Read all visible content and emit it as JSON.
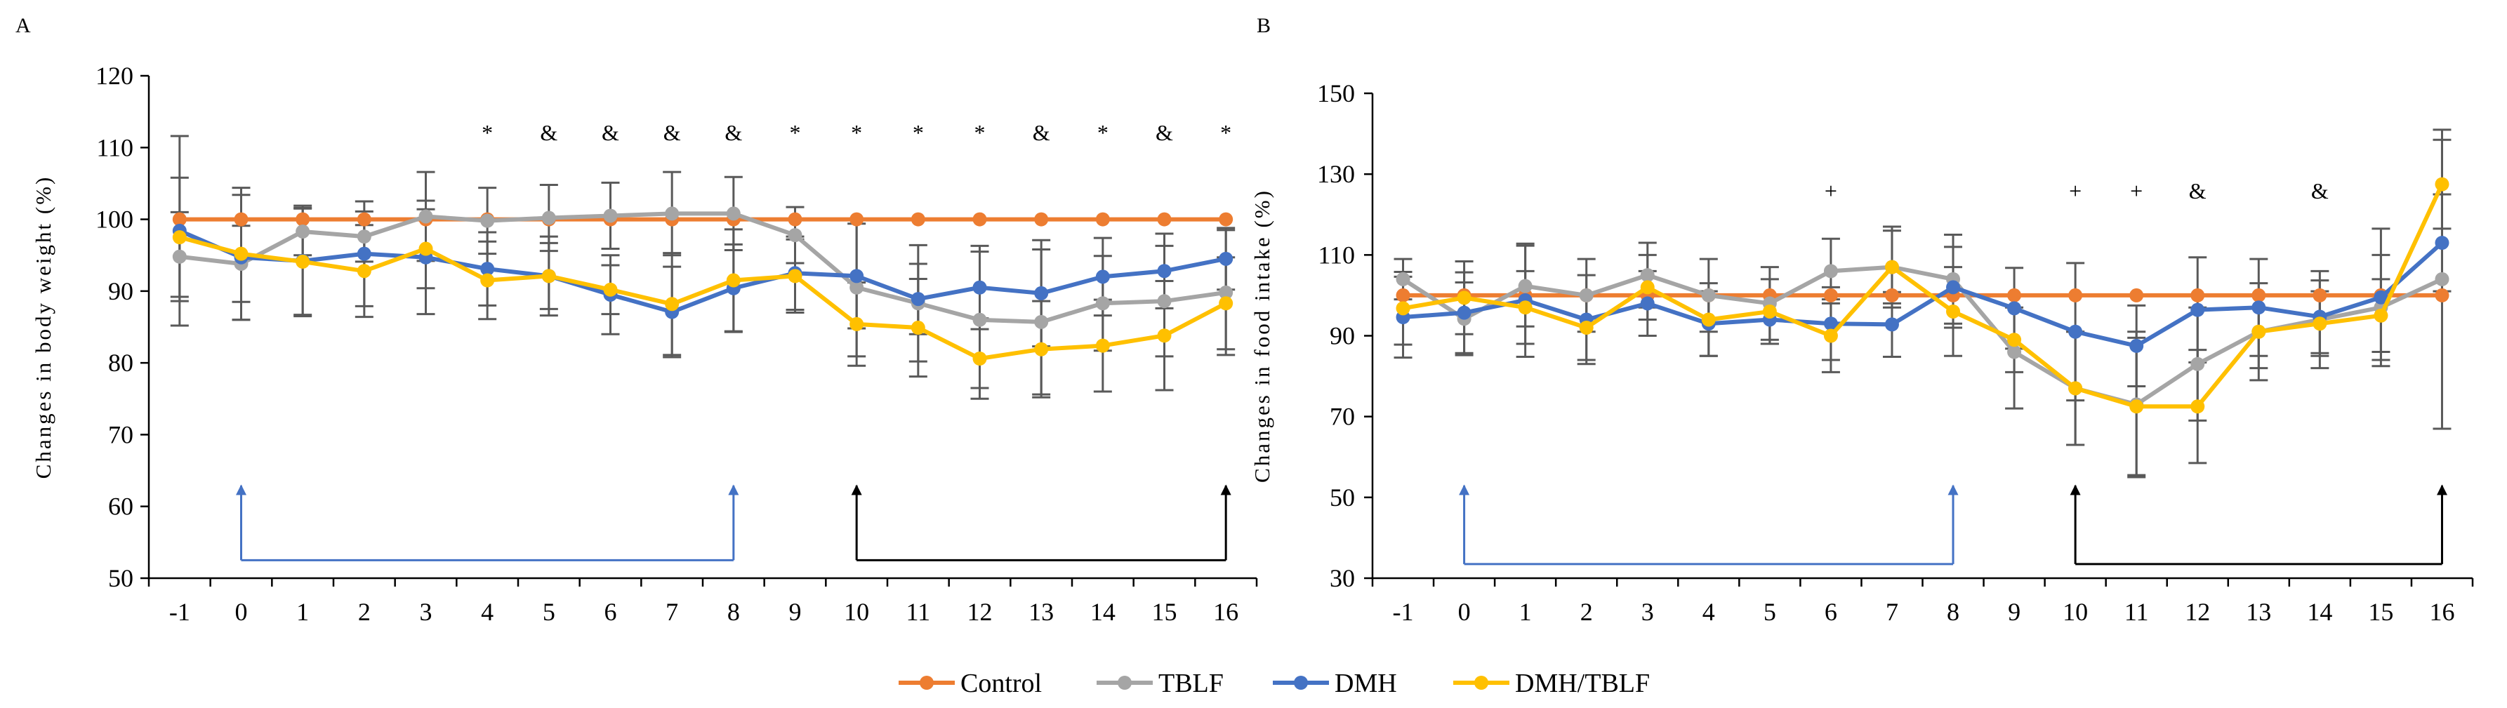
{
  "figure": {
    "legend": [
      {
        "name": "Control",
        "color": "#ED7D31"
      },
      {
        "name": "TBLF",
        "color": "#A5A5A5"
      },
      {
        "name": "DMH",
        "color": "#4472C4"
      },
      {
        "name": "DMH/TBLF",
        "color": "#FFC000"
      }
    ]
  },
  "chart_data": [
    {
      "type": "line",
      "panel_label": "A",
      "ylabel": "Changes in body weight (%)",
      "xlabel": "",
      "x": [
        -1,
        0,
        1,
        2,
        3,
        4,
        5,
        6,
        7,
        8,
        9,
        10,
        11,
        12,
        13,
        14,
        15,
        16
      ],
      "ylim": [
        50,
        120
      ],
      "yticks": [
        50,
        60,
        70,
        80,
        90,
        100,
        110,
        120
      ],
      "series": [
        {
          "name": "Control",
          "color": "#ED7D31",
          "values": [
            100,
            100,
            100,
            100,
            100,
            100,
            100,
            100,
            100,
            100,
            100,
            100,
            100,
            100,
            100,
            100,
            100,
            100
          ],
          "errors": [
            0,
            0,
            0,
            0,
            0,
            0,
            0,
            0,
            0,
            0,
            0,
            0,
            0,
            0,
            0,
            0,
            0,
            0
          ]
        },
        {
          "name": "TBLF",
          "color": "#A5A5A5",
          "values": [
            94.8,
            93.8,
            98.3,
            97.6,
            100.4,
            99.8,
            100.2,
            100.5,
            100.8,
            100.8,
            97.8,
            90.5,
            88.3,
            86,
            85.7,
            88.3,
            88.6,
            89.8
          ],
          "errors": [
            6.2,
            5.3,
            3.3,
            3.5,
            6.2,
            4.6,
            4.6,
            4.6,
            5.8,
            5.1,
            3.9,
            9.6,
            8.1,
            9.5,
            10.1,
            6.6,
            7.7,
            8.7
          ]
        },
        {
          "name": "DMH",
          "color": "#4472C4",
          "values": [
            98.4,
            94.7,
            94.2,
            95.2,
            94.7,
            93.1,
            92.1,
            89.5,
            87.1,
            90.4,
            92.5,
            92.1,
            88.9,
            90.5,
            89.7,
            92,
            92.8,
            94.5
          ],
          "errors": [
            13.2,
            8.7,
            7.7,
            7.3,
            7.9,
            5.1,
            5.5,
            5.5,
            6.3,
            6.1,
            5.1,
            7.3,
            4.9,
            5.8,
            7.4,
            5.4,
            5.2,
            4.3
          ]
        },
        {
          "name": "DMH/TBLF",
          "color": "#FFC000",
          "values": [
            97.5,
            95.2,
            94.1,
            92.8,
            95.9,
            91.5,
            92.1,
            90.2,
            88.2,
            91.5,
            92.1,
            85.4,
            84.9,
            80.6,
            81.9,
            82.4,
            83.8,
            88.3
          ],
          "errors": [
            8.3,
            9.2,
            7.4,
            6.4,
            5.5,
            5.4,
            4.6,
            3.4,
            7.1,
            7.1,
            5.1,
            5.8,
            6.8,
            5.6,
            6.7,
            6.4,
            7.6,
            6.4
          ]
        }
      ],
      "annotations": [
        {
          "x": 4,
          "text": "*"
        },
        {
          "x": 5,
          "text": "&"
        },
        {
          "x": 6,
          "text": "&"
        },
        {
          "x": 7,
          "text": "&"
        },
        {
          "x": 8,
          "text": "&"
        },
        {
          "x": 9,
          "text": "*"
        },
        {
          "x": 10,
          "text": "*"
        },
        {
          "x": 11,
          "text": "*"
        },
        {
          "x": 12,
          "text": "*"
        },
        {
          "x": 13,
          "text": "&"
        },
        {
          "x": 14,
          "text": "*"
        },
        {
          "x": 15,
          "text": "&"
        },
        {
          "x": 16,
          "text": "*"
        }
      ],
      "brackets": [
        {
          "from": 0,
          "to": 8,
          "y": 52.5,
          "color": "#4472C4"
        },
        {
          "from": 10,
          "to": 16,
          "y": 52.5,
          "color": "#000000"
        }
      ]
    },
    {
      "type": "line",
      "panel_label": "B",
      "ylabel": "Changes in food intake (%)",
      "xlabel": "",
      "x": [
        -1,
        0,
        1,
        2,
        3,
        4,
        5,
        6,
        7,
        8,
        9,
        10,
        11,
        12,
        13,
        14,
        15,
        16
      ],
      "ylim": [
        30,
        150
      ],
      "yticks": [
        30,
        50,
        70,
        90,
        110,
        130,
        150
      ],
      "series": [
        {
          "name": "Control",
          "color": "#ED7D31",
          "values": [
            100,
            100,
            100,
            100,
            100,
            100,
            100,
            100,
            100,
            100,
            100,
            100,
            100,
            100,
            100,
            100,
            100,
            100
          ],
          "errors": [
            0,
            0,
            0,
            0,
            0,
            0,
            0,
            0,
            0,
            0,
            0,
            0,
            0,
            0,
            0,
            0,
            0,
            0
          ]
        },
        {
          "name": "TBLF",
          "color": "#A5A5A5",
          "values": [
            104,
            94.2,
            102.3,
            100,
            105,
            100,
            98,
            106,
            107,
            104,
            86,
            77,
            73,
            83,
            91,
            94,
            97,
            104
          ],
          "errors": [
            5,
            9,
            10,
            9,
            8,
            9,
            9,
            8,
            10,
            11,
            14,
            14,
            18,
            14,
            12,
            12,
            13,
            37
          ]
        },
        {
          "name": "DMH",
          "color": "#4472C4",
          "values": [
            94.6,
            95.7,
            98.8,
            94,
            98,
            93,
            94,
            93,
            92.8,
            102,
            96.8,
            91,
            87.5,
            96.4,
            97,
            94.7,
            99.5,
            113
          ],
          "errors": [
            10,
            10,
            14,
            11,
            8,
            8,
            6,
            9,
            8,
            10,
            10,
            17,
            10,
            13,
            12,
            9,
            17,
            12
          ]
        },
        {
          "name": "DMH/TBLF",
          "color": "#FFC000",
          "values": [
            96.8,
            99.4,
            97,
            92,
            102,
            94,
            96,
            90,
            107,
            96,
            89,
            77,
            72.5,
            72.5,
            91,
            93,
            95,
            127.5
          ],
          "errors": [
            9,
            9,
            9,
            8,
            8,
            9,
            8,
            9,
            9,
            11,
            8,
            14,
            17,
            14,
            9,
            8,
            9,
            11
          ]
        }
      ],
      "annotations": [
        {
          "x": 6,
          "text": "+"
        },
        {
          "x": 10,
          "text": "+"
        },
        {
          "x": 11,
          "text": "+"
        },
        {
          "x": 12,
          "text": "&"
        },
        {
          "x": 14,
          "text": "&"
        }
      ],
      "brackets": [
        {
          "from": 0,
          "to": 8,
          "y": 33.5,
          "color": "#4472C4"
        },
        {
          "from": 10,
          "to": 16,
          "y": 33.5,
          "color": "#000000"
        }
      ]
    }
  ]
}
